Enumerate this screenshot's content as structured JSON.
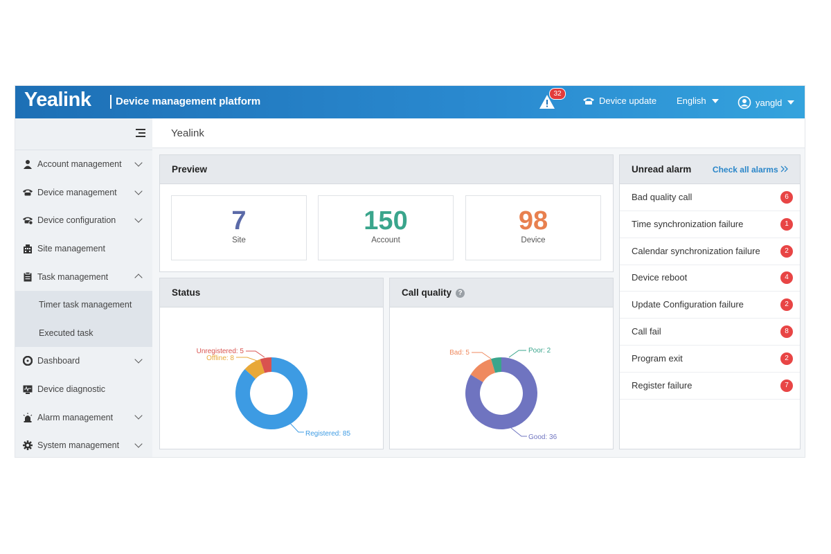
{
  "header": {
    "logo": "Yealink",
    "platform_title": "Device management platform",
    "alarm_count": "32",
    "device_update": "Device update",
    "language": "English",
    "user": "yangld"
  },
  "sidebar": {
    "items": [
      {
        "label": "Account management",
        "icon": "user-icon"
      },
      {
        "label": "Device management",
        "icon": "phone-icon"
      },
      {
        "label": "Device configuration",
        "icon": "phone-gear-icon"
      },
      {
        "label": "Site management",
        "icon": "building-icon"
      },
      {
        "label": "Task management",
        "icon": "clipboard-icon"
      },
      {
        "label": "Timer task management"
      },
      {
        "label": "Executed task"
      },
      {
        "label": "Dashboard",
        "icon": "dashboard-icon"
      },
      {
        "label": "Device diagnostic",
        "icon": "monitor-icon"
      },
      {
        "label": "Alarm management",
        "icon": "alarm-light-icon"
      },
      {
        "label": "System management",
        "icon": "gear-icon"
      }
    ]
  },
  "breadcrumb": "Yealink",
  "preview": {
    "title": "Preview",
    "stats": [
      {
        "value": "7",
        "label": "Site",
        "color": "#5b6aa8"
      },
      {
        "value": "150",
        "label": "Account",
        "color": "#3aa58c"
      },
      {
        "value": "98",
        "label": "Device",
        "color": "#e8804f"
      }
    ]
  },
  "status": {
    "title": "Status",
    "labels": {
      "unregistered": "Unregistered: 5",
      "offline": "Offline: 8",
      "registered": "Registered: 85"
    }
  },
  "call_quality": {
    "title": "Call quality",
    "help": "?",
    "labels": {
      "bad": "Bad: 5",
      "poor": "Poor: 2",
      "good": "Good: 36"
    }
  },
  "alarms": {
    "title": "Unread alarm",
    "check_all": "Check all alarms",
    "items": [
      {
        "label": "Bad quality call",
        "count": "6"
      },
      {
        "label": "Time synchronization failure",
        "count": "1"
      },
      {
        "label": "Calendar synchronization failure",
        "count": "2"
      },
      {
        "label": "Device reboot",
        "count": "4"
      },
      {
        "label": "Update Configuration failure",
        "count": "2"
      },
      {
        "label": "Call fail",
        "count": "8"
      },
      {
        "label": "Program exit",
        "count": "2"
      },
      {
        "label": "Register failure",
        "count": "7"
      }
    ]
  },
  "colors": {
    "registered": "#3d9be3",
    "offline": "#e8a838",
    "unregistered": "#d9534f",
    "good": "#6f74c0",
    "bad": "#ef8a5f",
    "poor": "#3aa58c"
  },
  "chart_data": [
    {
      "type": "pie",
      "title": "Status",
      "categories": [
        "Registered",
        "Offline",
        "Unregistered"
      ],
      "values": [
        85,
        8,
        5
      ]
    },
    {
      "type": "pie",
      "title": "Call quality",
      "categories": [
        "Good",
        "Bad",
        "Poor"
      ],
      "values": [
        36,
        5,
        2
      ]
    }
  ]
}
